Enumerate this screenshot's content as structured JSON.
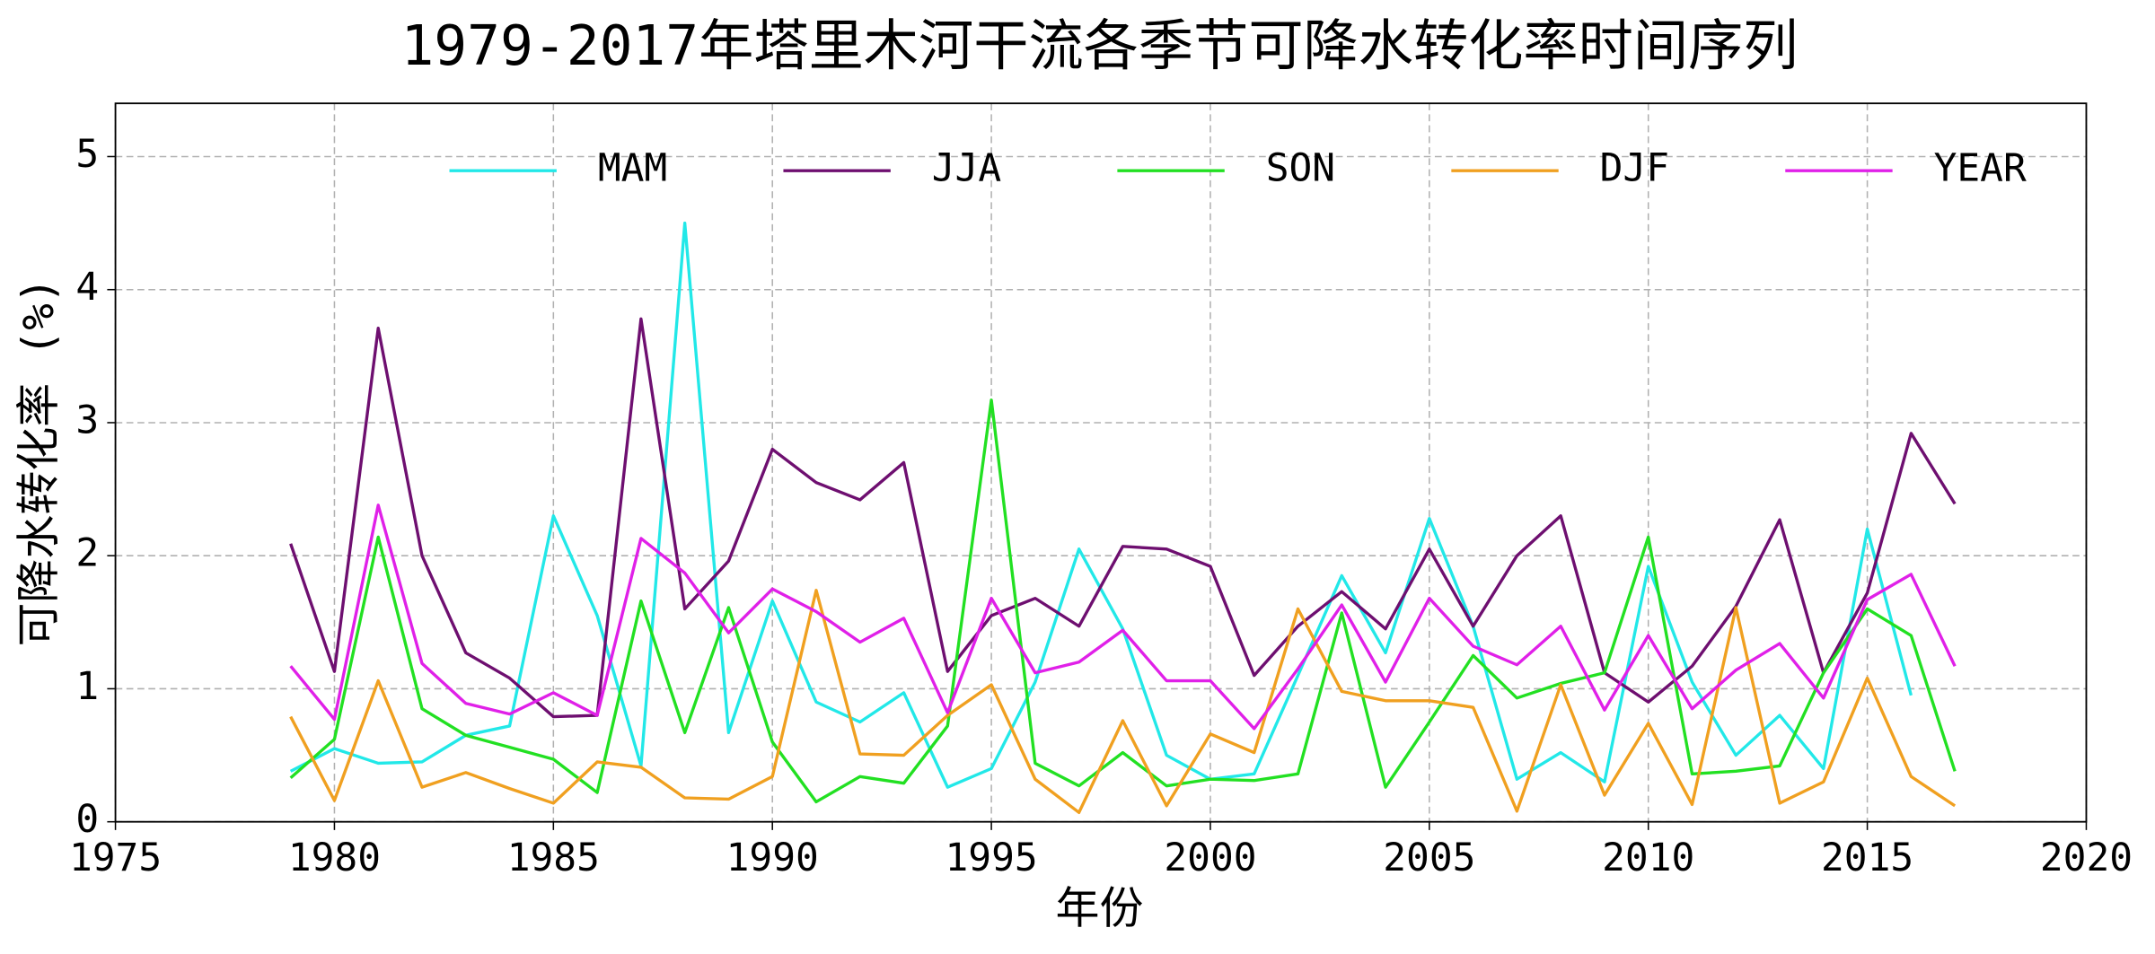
{
  "chart_data": {
    "type": "line",
    "title": "1979-2017年塔里木河干流各季节可降水转化率时间序列",
    "x_label": "年份",
    "y_label": "可降水转化率 (%)",
    "x": [
      1979,
      1980,
      1981,
      1982,
      1983,
      1984,
      1985,
      1986,
      1987,
      1988,
      1989,
      1990,
      1991,
      1992,
      1993,
      1994,
      1995,
      1996,
      1997,
      1998,
      1999,
      2000,
      2001,
      2002,
      2003,
      2004,
      2005,
      2006,
      2007,
      2008,
      2009,
      2010,
      2011,
      2012,
      2013,
      2014,
      2015,
      2016,
      2017
    ],
    "series": [
      {
        "name": "MAM",
        "color": "#22e8e8",
        "values": [
          0.38,
          0.55,
          0.44,
          0.45,
          0.65,
          0.72,
          2.3,
          1.55,
          0.42,
          4.5,
          0.67,
          1.66,
          0.9,
          0.75,
          0.97,
          0.26,
          0.4,
          1.05,
          2.05,
          1.45,
          0.5,
          0.32,
          0.36,
          1.1,
          1.85,
          1.27,
          2.28,
          1.47,
          0.32,
          0.52,
          0.3,
          1.92,
          1.05,
          0.5,
          0.8,
          0.4,
          2.2,
          0.95,
          null
        ]
      },
      {
        "name": "JJA",
        "color": "#6e0f70",
        "values": [
          2.09,
          1.13,
          3.71,
          2.0,
          1.27,
          1.08,
          0.79,
          0.8,
          3.78,
          1.6,
          1.96,
          2.8,
          2.55,
          2.42,
          2.7,
          1.13,
          1.55,
          1.68,
          1.47,
          2.07,
          2.05,
          1.92,
          1.1,
          1.47,
          1.73,
          1.45,
          2.05,
          1.47,
          2.0,
          2.3,
          1.12,
          0.9,
          1.17,
          1.62,
          2.27,
          1.12,
          1.72,
          2.92,
          2.39
        ]
      },
      {
        "name": "SON",
        "color": "#22e022",
        "values": [
          0.33,
          0.62,
          2.14,
          0.85,
          0.65,
          0.56,
          0.47,
          0.22,
          1.66,
          0.67,
          1.61,
          0.6,
          0.15,
          0.34,
          0.29,
          0.72,
          3.17,
          0.44,
          0.27,
          0.52,
          0.27,
          0.32,
          0.31,
          0.36,
          1.57,
          0.26,
          0.75,
          1.25,
          0.93,
          1.04,
          1.12,
          2.14,
          0.36,
          0.38,
          0.42,
          1.12,
          1.6,
          1.4,
          0.38
        ]
      },
      {
        "name": "DJF",
        "color": "#f0a020",
        "values": [
          0.79,
          0.16,
          1.06,
          0.26,
          0.37,
          0.25,
          0.14,
          0.45,
          0.41,
          0.18,
          0.17,
          0.34,
          1.74,
          0.51,
          0.5,
          0.8,
          1.03,
          0.32,
          0.07,
          0.76,
          0.12,
          0.66,
          0.52,
          1.6,
          0.98,
          0.91,
          0.91,
          0.86,
          0.08,
          1.03,
          0.2,
          0.74,
          0.13,
          1.61,
          0.14,
          0.3,
          1.08,
          0.34,
          0.12
        ]
      },
      {
        "name": "YEAR",
        "color": "#e020e8",
        "values": [
          1.17,
          0.77,
          2.38,
          1.19,
          0.89,
          0.81,
          0.97,
          0.8,
          2.13,
          1.87,
          1.42,
          1.75,
          1.58,
          1.35,
          1.53,
          0.82,
          1.68,
          1.12,
          1.2,
          1.44,
          1.06,
          1.06,
          0.7,
          1.15,
          1.63,
          1.05,
          1.68,
          1.32,
          1.18,
          1.47,
          0.84,
          1.4,
          0.85,
          1.14,
          1.34,
          0.93,
          1.67,
          1.86,
          1.17
        ]
      }
    ],
    "xlim": [
      1975,
      2020
    ],
    "xticks": [
      1975,
      1980,
      1985,
      1990,
      1995,
      2000,
      2005,
      2010,
      2015,
      2020
    ],
    "ylim": [
      0,
      5.4
    ],
    "yticks": [
      0,
      1,
      2,
      3,
      4,
      5
    ],
    "grid": true,
    "legend": "top"
  }
}
